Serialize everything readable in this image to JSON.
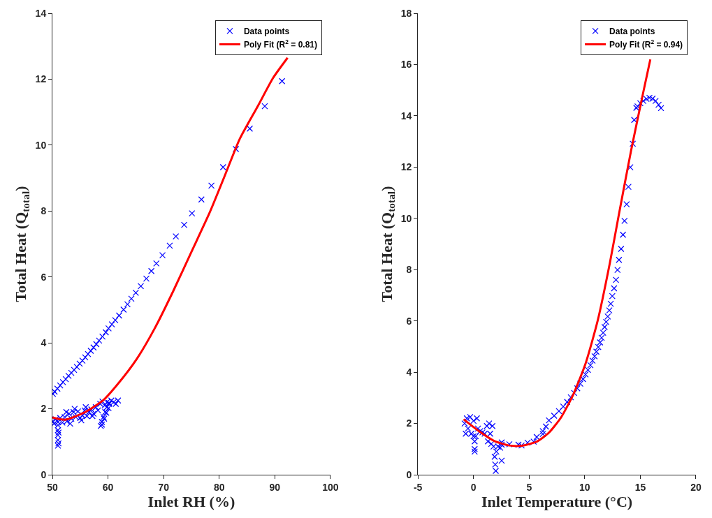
{
  "chart_data": [
    {
      "type": "scatter",
      "xlabel": "Inlet RH (%)",
      "ylabel": "Total Heat (Q$_{total}$)",
      "xlim": [
        50,
        100
      ],
      "xticks": [
        50,
        60,
        70,
        80,
        90,
        100
      ],
      "ylim": [
        0,
        14
      ],
      "yticks": [
        0,
        2,
        4,
        6,
        8,
        10,
        12,
        14
      ],
      "legend": "top right",
      "series": [
        {
          "name": "Data points",
          "type": "scatter",
          "marker": "cross",
          "color": "#0000ff",
          "x": [
            91.3,
            88.2,
            85.5,
            83.0,
            80.7,
            78.6,
            76.8,
            75.1,
            73.7,
            72.2,
            71.1,
            69.8,
            68.7,
            67.8,
            66.9,
            65.9,
            65.0,
            64.2,
            63.5,
            62.8,
            62.0,
            61.3,
            60.7,
            60.1,
            59.6,
            59.0,
            58.4,
            57.9,
            57.4,
            56.9,
            56.4,
            55.9,
            55.4,
            54.9,
            54.4,
            53.9,
            53.4,
            52.9,
            52.4,
            51.9,
            51.4,
            50.9,
            50.4,
            50.1,
            50.0,
            50.3,
            50.6,
            51.0,
            51.4,
            51.8,
            52.2,
            52.6,
            53.0,
            53.4,
            53.8,
            54.2,
            54.6,
            55.0,
            55.4,
            55.8,
            56.2,
            56.6,
            57.0,
            57.4,
            57.8,
            58.2,
            58.6,
            59.0,
            59.4,
            59.8,
            60.2,
            60.6,
            61.0,
            61.4,
            61.8,
            52.5,
            54.0,
            56.0,
            53.2,
            55.2,
            57.2,
            51.0,
            51.0,
            51.0,
            51.0,
            51.0,
            51.1,
            51.1,
            58.7,
            58.9,
            59.2,
            59.5,
            59.8,
            60.2,
            58.9,
            59.3,
            59.7,
            60.1
          ],
          "values": [
            11.94,
            11.18,
            10.5,
            9.88,
            9.33,
            8.77,
            8.35,
            7.93,
            7.58,
            7.23,
            6.95,
            6.66,
            6.41,
            6.18,
            5.95,
            5.72,
            5.52,
            5.34,
            5.17,
            5.01,
            4.83,
            4.69,
            4.56,
            4.44,
            4.32,
            4.19,
            4.07,
            3.96,
            3.86,
            3.76,
            3.66,
            3.56,
            3.46,
            3.37,
            3.27,
            3.18,
            3.09,
            3.0,
            2.9,
            2.81,
            2.71,
            2.61,
            2.52,
            2.45,
            1.62,
            1.55,
            1.68,
            1.6,
            1.72,
            1.58,
            1.75,
            1.62,
            1.85,
            1.7,
            1.9,
            1.75,
            1.92,
            1.72,
            1.8,
            1.95,
            1.78,
            1.9,
            1.98,
            1.85,
            2.05,
            1.95,
            2.15,
            2.22,
            2.1,
            2.2,
            2.15,
            2.25,
            2.2,
            2.15,
            2.25,
            1.9,
            2.0,
            2.05,
            1.55,
            1.65,
            1.78,
            0.88,
            1.05,
            1.2,
            1.35,
            1.5,
            0.95,
            1.28,
            1.48,
            1.6,
            1.75,
            1.9,
            2.05,
            2.18,
            1.52,
            1.7,
            1.88,
            2.02
          ]
        },
        {
          "name": "Poly Fit (R$^{2}$ = 0.81)",
          "type": "line",
          "line_style": "solid",
          "color": "#ff0000",
          "x": [
            50.0,
            52.3,
            55.9,
            59.2,
            61.9,
            65.2,
            68.4,
            71.7,
            75.0,
            78.3,
            81.0,
            83.7,
            87.0,
            89.7,
            92.3
          ],
          "values": [
            1.74,
            1.67,
            1.9,
            2.27,
            2.78,
            3.52,
            4.44,
            5.56,
            6.76,
            7.96,
            9.07,
            10.19,
            11.2,
            12.04,
            12.65
          ]
        }
      ]
    },
    {
      "type": "scatter",
      "xlabel": "Inlet Temperature (°C)",
      "ylabel": "Total Heat (Q$_{total}$)",
      "xlim": [
        -5,
        20
      ],
      "xticks": [
        -5,
        0,
        5,
        10,
        15,
        20
      ],
      "ylim": [
        0,
        18
      ],
      "yticks": [
        0,
        2,
        4,
        6,
        8,
        10,
        12,
        14,
        16,
        18
      ],
      "legend": "top right",
      "series": [
        {
          "name": "Data points",
          "type": "scatter",
          "marker": "cross",
          "color": "#0000ff",
          "x": [
            16.86,
            16.64,
            16.37,
            16.1,
            15.82,
            15.55,
            15.27,
            15.0,
            14.75,
            14.64,
            14.45,
            14.32,
            14.1,
            13.93,
            13.77,
            13.58,
            13.44,
            13.27,
            13.08,
            12.95,
            12.81,
            12.64,
            12.48,
            12.34,
            12.21,
            12.07,
            11.93,
            11.79,
            11.66,
            11.52,
            11.38,
            11.22,
            11.05,
            10.89,
            10.7,
            10.51,
            10.29,
            10.07,
            9.85,
            9.6,
            9.33,
            9.05,
            8.75,
            8.42,
            8.07,
            7.68,
            7.25,
            6.78,
            6.51,
            6.23,
            5.68,
            4.86,
            4.04,
            3.22,
            2.53,
            6.23,
            5.41,
            4.32,
            2.53,
            2.53,
            -0.8,
            -0.6,
            -0.5,
            -0.3,
            -0.2,
            0.0,
            0.1,
            0.1,
            0.1,
            0.2,
            0.3,
            0.4,
            0.6,
            0.8,
            1.0,
            1.2,
            1.3,
            1.4,
            1.5,
            1.6,
            1.7,
            1.8,
            1.9,
            1.95,
            2.0,
            2.05,
            2.2,
            2.4,
            -0.7,
            0.0
          ],
          "values": [
            14.3,
            14.43,
            14.58,
            14.67,
            14.7,
            14.66,
            14.58,
            14.49,
            14.37,
            14.31,
            13.84,
            12.91,
            11.99,
            11.23,
            10.55,
            9.9,
            9.36,
            8.81,
            8.38,
            7.99,
            7.6,
            7.27,
            6.97,
            6.67,
            6.41,
            6.17,
            5.96,
            5.76,
            5.54,
            5.34,
            5.16,
            4.98,
            4.8,
            4.62,
            4.45,
            4.27,
            4.09,
            3.91,
            3.73,
            3.55,
            3.37,
            3.19,
            3.02,
            2.84,
            2.66,
            2.48,
            2.3,
            2.12,
            1.88,
            1.7,
            1.47,
            1.25,
            1.17,
            1.19,
            1.26,
            1.59,
            1.29,
            1.14,
            1.17,
            0.55,
            2.0,
            2.2,
            1.8,
            2.25,
            1.6,
            2.1,
            1.3,
            1.0,
            0.9,
            1.5,
            2.2,
            1.8,
            1.7,
            1.65,
            1.6,
            1.9,
            1.3,
            2.0,
            1.6,
            1.2,
            1.9,
            1.1,
            0.7,
            0.4,
            0.15,
            0.9,
            1.1,
            1.05,
            1.6,
            1.5
          ]
        },
        {
          "name": "Poly Fit (R$^{2}$ = 0.94)",
          "type": "line",
          "line_style": "solid",
          "color": "#ff0000",
          "x": [
            -0.89,
            0.48,
            1.85,
            3.22,
            4.32,
            5.68,
            6.78,
            7.88,
            8.97,
            10.07,
            11.16,
            12.26,
            13.08,
            14.18,
            15.27,
            15.9
          ],
          "values": [
            2.16,
            1.7,
            1.32,
            1.14,
            1.13,
            1.29,
            1.64,
            2.24,
            3.13,
            4.33,
            6.0,
            8.26,
            10.17,
            12.67,
            14.93,
            16.2
          ]
        }
      ]
    }
  ]
}
